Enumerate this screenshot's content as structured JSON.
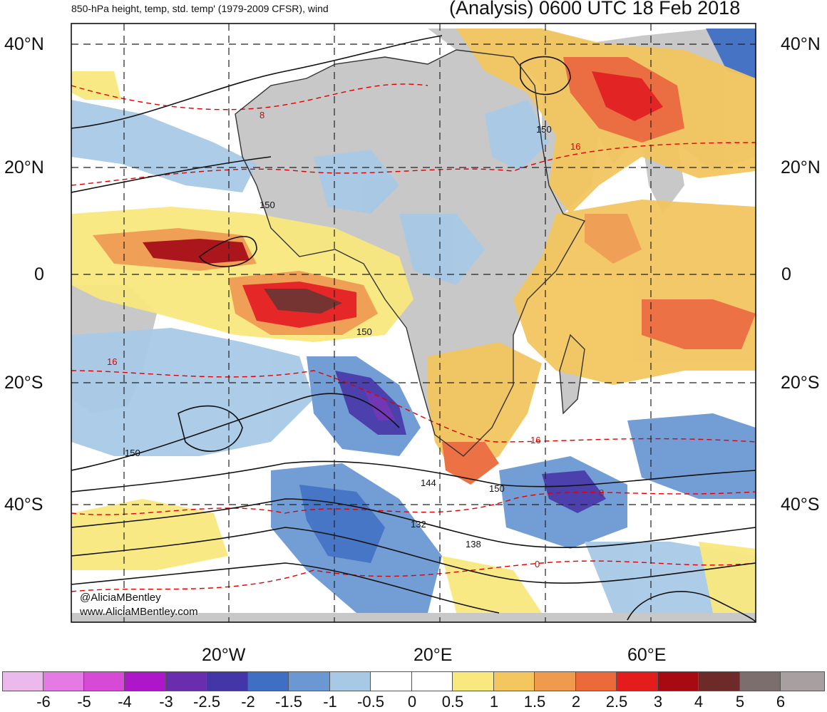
{
  "header": {
    "left_title": "850-hPa height, temp, std. temp' (1979-2009 CFSR), wind",
    "right_title": "(Analysis) 0600 UTC 18 Feb 2018"
  },
  "lat_labels": [
    "40°N",
    "20°N",
    "0",
    "20°S",
    "40°S"
  ],
  "lon_labels": [
    "20°W",
    "20°E",
    "60°E"
  ],
  "contour_labels": {
    "height": [
      "150",
      "150",
      "150",
      "150",
      "144",
      "150",
      "132",
      "138"
    ],
    "temperature": [
      "8",
      "16",
      "16",
      "16",
      "0",
      "8"
    ]
  },
  "credits": {
    "handle": "@AliciaMBentley",
    "website": "www.AliciaMBentley.com"
  },
  "colorbar": {
    "labels": [
      "-6",
      "-5",
      "-4",
      "-3",
      "-2.5",
      "-2",
      "-1.5",
      "-1",
      "-0.5",
      "0",
      "0.5",
      "1",
      "1.5",
      "2",
      "2.5",
      "3",
      "4",
      "5",
      "6"
    ],
    "colors": [
      "#ebb9eb",
      "#e57ae5",
      "#d64ad6",
      "#ad17c9",
      "#6a2db0",
      "#4236a8",
      "#3f6fc4",
      "#6b98d3",
      "#a8c9e6",
      "#ffffff",
      "#ffffff",
      "#f8e87e",
      "#f3c660",
      "#f09a4e",
      "#ec6a3a",
      "#e41c1c",
      "#a70a10",
      "#6e2a28",
      "#7d6e6e",
      "#a8a0a0"
    ]
  }
}
